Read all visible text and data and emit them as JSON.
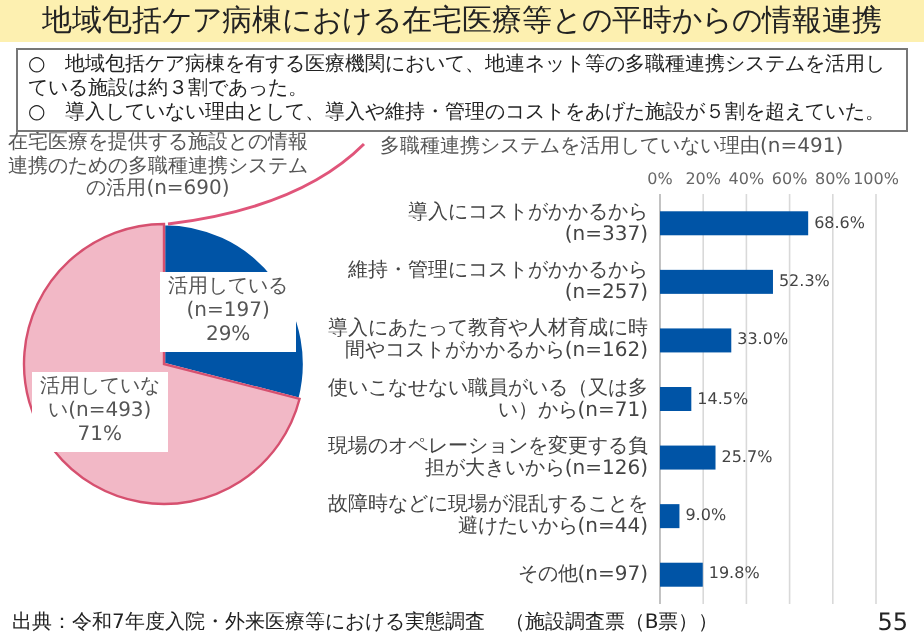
{
  "chart_data": [
    {
      "type": "pie",
      "title": "在宅医療を提供する施設との情報連携のための多職種連携システムの活用(n=690)",
      "categories": [
        "活用している(n=197)",
        "活用していない(n=493)"
      ],
      "values": [
        29,
        71
      ],
      "colors": [
        "#0054a6",
        "#f2b8c6"
      ],
      "value_labels": [
        "29%",
        "71%"
      ],
      "annotations": [
        "地域包括ケア病棟における在宅医療等との平時からの情報連携",
        "○　地域包括ケア病棟を有する医療機関において、地連ネット等の多職種連携システムを活用している施設は約３割であった。",
        "○　導入していない理由として、導入や維持・管理のコストをあげた施設が５割を超えていた。",
        "出典：令和7年度入院・外来医療等における実態調査　（施設調査票（B票））",
        "55"
      ]
    },
    {
      "type": "bar",
      "orientation": "horizontal",
      "title": "多職種連携システムを活用していない理由(n=491)",
      "categories": [
        "導入にコストがかかるから(n=337)",
        "維持・管理にコストがかかるから(n=257)",
        "導入にあたって教育や人材育成に時間やコストがかかるから(n=162)",
        "使いこなせない職員がいる（又は多い）から(n=71)",
        "現場のオペレーションを変更する負担が大きいから(n=126)",
        "故障時などに現場が混乱することを避けたいから(n=44)",
        "その他(n=97)"
      ],
      "values": [
        68.6,
        52.3,
        33.0,
        14.5,
        25.7,
        9.0,
        19.8
      ],
      "value_labels": [
        "68.6%",
        "52.3%",
        "33.0%",
        "14.5%",
        "25.7%",
        "9.0%",
        "19.8%"
      ],
      "color": "#0054a6",
      "xlim": [
        0,
        100
      ],
      "xticks": [
        {
          "value": 0,
          "label": "0%"
        },
        {
          "value": 20,
          "label": "20%"
        },
        {
          "value": 40,
          "label": "40%"
        },
        {
          "value": 60,
          "label": "60%"
        },
        {
          "value": 80,
          "label": "80%"
        },
        {
          "value": 100,
          "label": "100%"
        }
      ],
      "grid": "x"
    }
  ]
}
